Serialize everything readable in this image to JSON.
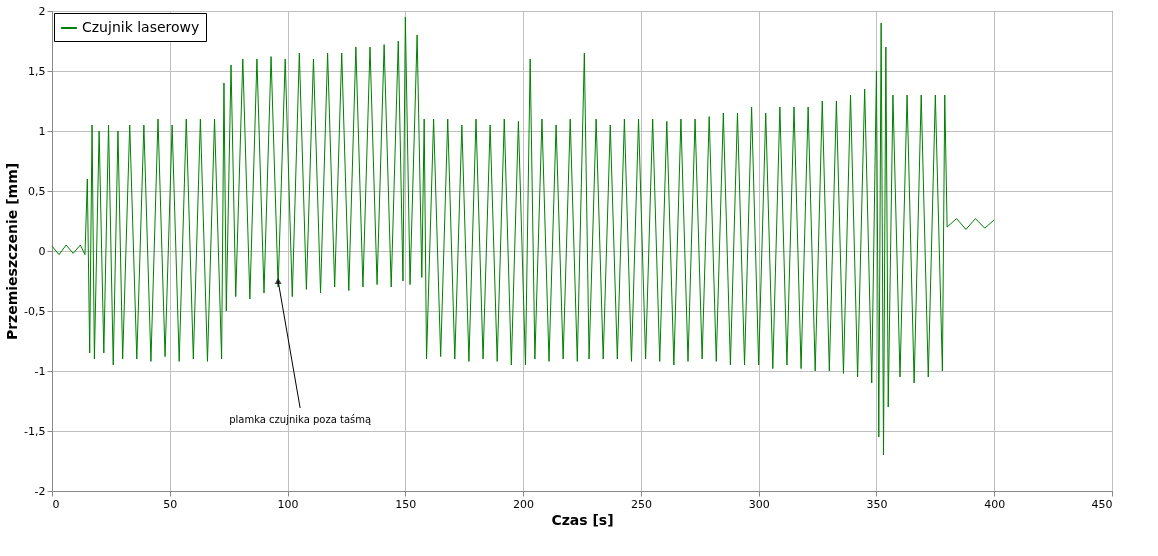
{
  "chart_data": {
    "type": "line",
    "xlabel": "Czas [s]",
    "ylabel": "Przemieszczenie [mm]",
    "xlim": [
      0,
      450
    ],
    "ylim": [
      -2,
      2
    ],
    "xticks": [
      0,
      50,
      100,
      150,
      200,
      250,
      300,
      350,
      400,
      450
    ],
    "yticks": [
      {
        "value": -2,
        "label": "-2"
      },
      {
        "value": -1.5,
        "label": "-1,5"
      },
      {
        "value": -1,
        "label": "-1"
      },
      {
        "value": -0.5,
        "label": "-0,5"
      },
      {
        "value": 0,
        "label": "0"
      },
      {
        "value": 0.5,
        "label": "0,5"
      },
      {
        "value": 1,
        "label": "1"
      },
      {
        "value": 1.5,
        "label": "1,5"
      },
      {
        "value": 2,
        "label": "2"
      }
    ],
    "grid": true,
    "legend": "top left",
    "annotations": [
      {
        "text": "plamka czujnika poza taśmą",
        "x": 96,
        "y": -0.25
      }
    ],
    "series": [
      {
        "name": "Czujnik laserowy",
        "color": "#008000",
        "x": [
          0,
          3,
          6,
          9,
          12,
          14,
          15,
          16,
          17,
          18,
          20,
          22,
          24,
          26,
          28,
          30,
          33,
          36,
          39,
          42,
          45,
          48,
          51,
          54,
          57,
          60,
          63,
          66,
          69,
          72,
          73,
          74,
          76,
          78,
          81,
          84,
          87,
          90,
          93,
          96,
          99,
          102,
          105,
          108,
          111,
          114,
          117,
          120,
          123,
          126,
          129,
          132,
          135,
          138,
          141,
          144,
          147,
          149,
          150,
          152,
          155,
          157,
          158,
          159,
          162,
          165,
          168,
          171,
          174,
          177,
          180,
          183,
          186,
          189,
          192,
          195,
          198,
          201,
          203,
          205,
          208,
          211,
          214,
          217,
          220,
          223,
          226,
          228,
          231,
          234,
          237,
          240,
          243,
          246,
          249,
          252,
          255,
          258,
          261,
          264,
          267,
          270,
          273,
          276,
          279,
          282,
          285,
          288,
          291,
          294,
          297,
          300,
          303,
          306,
          309,
          312,
          315,
          318,
          321,
          324,
          327,
          330,
          333,
          336,
          339,
          342,
          345,
          348,
          350,
          351,
          352,
          353,
          354,
          355,
          357,
          360,
          363,
          366,
          369,
          372,
          375,
          378,
          379,
          380,
          384,
          388,
          392,
          396,
          400
        ],
        "values": [
          0.04,
          -0.03,
          0.05,
          -0.02,
          0.05,
          -0.03,
          0.6,
          -0.85,
          1.05,
          -0.9,
          1.0,
          -0.85,
          1.05,
          -0.95,
          1.0,
          -0.9,
          1.05,
          -0.9,
          1.05,
          -0.92,
          1.1,
          -0.88,
          1.05,
          -0.92,
          1.1,
          -0.9,
          1.1,
          -0.92,
          1.1,
          -0.9,
          1.4,
          -0.5,
          1.55,
          -0.38,
          1.6,
          -0.4,
          1.6,
          -0.35,
          1.62,
          -0.3,
          1.6,
          -0.38,
          1.65,
          -0.32,
          1.6,
          -0.35,
          1.65,
          -0.3,
          1.65,
          -0.33,
          1.7,
          -0.3,
          1.7,
          -0.28,
          1.72,
          -0.3,
          1.75,
          -0.25,
          1.95,
          -0.28,
          1.8,
          -0.22,
          1.1,
          -0.9,
          1.1,
          -0.88,
          1.1,
          -0.9,
          1.05,
          -0.92,
          1.1,
          -0.9,
          1.05,
          -0.92,
          1.1,
          -0.95,
          1.08,
          -0.95,
          1.6,
          -0.9,
          1.1,
          -0.92,
          1.05,
          -0.9,
          1.1,
          -0.92,
          1.65,
          -0.9,
          1.1,
          -0.9,
          1.05,
          -0.9,
          1.1,
          -0.92,
          1.1,
          -0.9,
          1.1,
          -0.92,
          1.08,
          -0.95,
          1.1,
          -0.92,
          1.1,
          -0.9,
          1.12,
          -0.92,
          1.15,
          -0.95,
          1.15,
          -0.95,
          1.2,
          -0.95,
          1.15,
          -0.98,
          1.2,
          -0.95,
          1.2,
          -0.98,
          1.2,
          -1.0,
          1.25,
          -1.0,
          1.25,
          -1.02,
          1.3,
          -1.05,
          1.35,
          -1.1,
          1.5,
          -1.55,
          1.9,
          -1.7,
          1.7,
          -1.3,
          1.3,
          -1.05,
          1.3,
          -1.1,
          1.3,
          -1.05,
          1.3,
          -1.0,
          1.3,
          0.2,
          0.27,
          0.18,
          0.27,
          0.19,
          0.26
        ]
      }
    ]
  }
}
